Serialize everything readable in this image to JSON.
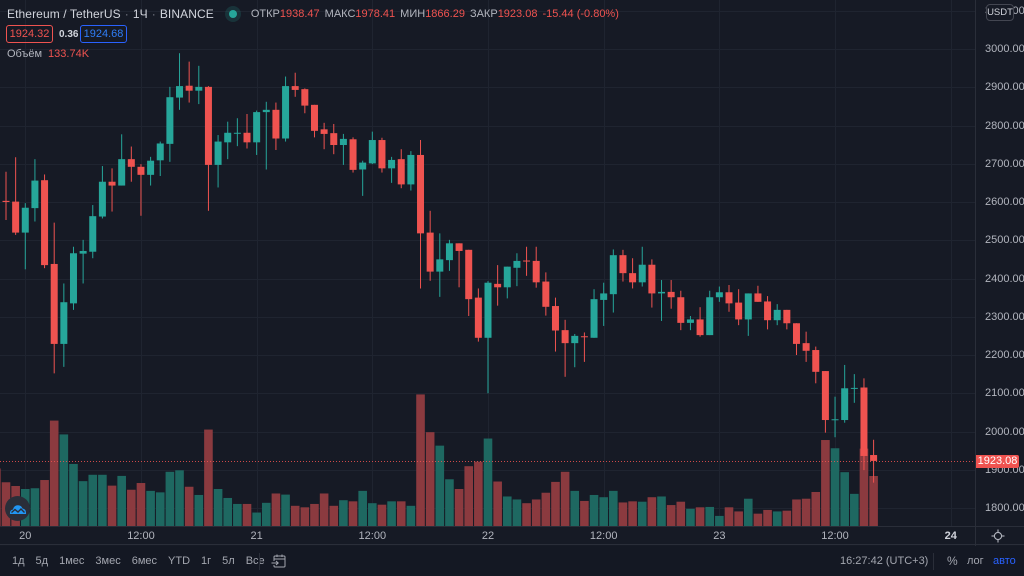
{
  "header": {
    "symbol": "Ethereum / TetherUS",
    "separator": "·",
    "interval": "1Ч",
    "exchange": "BINANCE",
    "ohlc": {
      "open_label": "ОТКР",
      "open": "1938.47",
      "high_label": "МАКС",
      "high": "1978.41",
      "low_label": "МИН",
      "low": "1866.29",
      "close_label": "ЗАКР",
      "close": "1923.08",
      "change": "-15.44 (-0.80%)"
    }
  },
  "quote": {
    "bid": "1924.32",
    "spread": "0.36",
    "ask": "1924.68"
  },
  "volume_legend": {
    "label": "Объём",
    "value": "133.74K"
  },
  "price_axis": {
    "currency": "USDT",
    "last_price": "1923.08"
  },
  "bottom_toolbar": {
    "ranges": [
      "1д",
      "5д",
      "1мес",
      "3мес",
      "6мес",
      "YTD",
      "1г",
      "5л",
      "Все"
    ],
    "clock": "16:27:42 (UTC+3)",
    "percent": "%",
    "log": "лог",
    "auto": "авто"
  },
  "icons": {
    "status": "market-open-dot",
    "date_range": "calendar-goto-icon",
    "settings": "gear-icon",
    "logo": "chart-logo-icon"
  },
  "colors": {
    "up": "#26a69a",
    "down": "#ef5350",
    "volume_up": "#1e6861",
    "volume_down": "#8b3a3f",
    "grid": "#1f2430",
    "price_line": "#ef5350",
    "accent_blue": "#2962ff",
    "background": "#161a25"
  },
  "chart_data": {
    "type": "candlestick",
    "title": "Ethereum / TetherUS · 1Ч · BINANCE",
    "ylabel": "USDT",
    "ylim": [
      1760,
      3110
    ],
    "yticks": [
      3100,
      3000,
      2900,
      2800,
      2700,
      2600,
      2500,
      2400,
      2300,
      2200,
      2100,
      2000,
      1900,
      1800
    ],
    "ytick_labels": [
      "3100.00",
      "3000.00",
      "2900.00",
      "2800.00",
      "2700.00",
      "2600.00",
      "2500.00",
      "2400.00",
      "2300.00",
      "2200.00",
      "2100.00",
      "2000.00",
      "1900.00",
      "1800.00"
    ],
    "xticks": [
      {
        "label": "20",
        "bar": 3
      },
      {
        "label": "12:00",
        "bar": 15
      },
      {
        "label": "21",
        "bar": 27
      },
      {
        "label": "12:00",
        "bar": 39
      },
      {
        "label": "22",
        "bar": 51
      },
      {
        "label": "12:00",
        "bar": 63
      },
      {
        "label": "23",
        "bar": 75
      },
      {
        "label": "12:00",
        "bar": 87
      },
      {
        "label": "24",
        "bar": 99
      }
    ],
    "grid": true,
    "last_price": 1923.08,
    "columns": [
      "open",
      "high",
      "low",
      "close",
      "volume_k"
    ],
    "candles": [
      [
        2767,
        2780,
        2600,
        2603,
        154
      ],
      [
        2603,
        2679,
        2553,
        2600,
        117
      ],
      [
        2601,
        2717,
        2514,
        2520,
        107
      ],
      [
        2520,
        2597,
        2424,
        2585,
        99
      ],
      [
        2584,
        2712,
        2549,
        2656,
        101
      ],
      [
        2657,
        2672,
        2427,
        2435,
        123
      ],
      [
        2438,
        2546,
        2152,
        2229,
        282
      ],
      [
        2229,
        2387,
        2169,
        2338,
        245
      ],
      [
        2335,
        2483,
        2318,
        2466,
        166
      ],
      [
        2465,
        2501,
        2387,
        2472,
        120
      ],
      [
        2470,
        2592,
        2453,
        2563,
        137
      ],
      [
        2562,
        2694,
        2557,
        2653,
        137
      ],
      [
        2653,
        2688,
        2575,
        2643,
        108
      ],
      [
        2643,
        2777,
        2643,
        2712,
        134
      ],
      [
        2712,
        2745,
        2653,
        2692,
        97
      ],
      [
        2692,
        2699,
        2564,
        2671,
        115
      ],
      [
        2671,
        2718,
        2643,
        2708,
        94
      ],
      [
        2709,
        2758,
        2668,
        2753,
        90
      ],
      [
        2752,
        2901,
        2705,
        2874,
        145
      ],
      [
        2873,
        2989,
        2841,
        2903,
        149
      ],
      [
        2904,
        2967,
        2860,
        2891,
        105
      ],
      [
        2891,
        2956,
        2856,
        2901,
        83
      ],
      [
        2901,
        2903,
        2577,
        2697,
        258
      ],
      [
        2697,
        2775,
        2638,
        2758,
        99
      ],
      [
        2756,
        2810,
        2712,
        2781,
        75
      ],
      [
        2779,
        2819,
        2746,
        2781,
        59
      ],
      [
        2781,
        2830,
        2740,
        2756,
        59
      ],
      [
        2756,
        2839,
        2723,
        2835,
        36
      ],
      [
        2835,
        2862,
        2685,
        2841,
        62
      ],
      [
        2841,
        2860,
        2736,
        2766,
        87
      ],
      [
        2766,
        2928,
        2758,
        2903,
        84
      ],
      [
        2903,
        2938,
        2875,
        2893,
        54
      ],
      [
        2895,
        2897,
        2832,
        2852,
        50
      ],
      [
        2854,
        2854,
        2769,
        2786,
        59
      ],
      [
        2790,
        2807,
        2738,
        2778,
        87
      ],
      [
        2780,
        2804,
        2725,
        2749,
        54
      ],
      [
        2749,
        2778,
        2697,
        2765,
        69
      ],
      [
        2764,
        2769,
        2677,
        2684,
        66
      ],
      [
        2685,
        2708,
        2616,
        2703,
        94
      ],
      [
        2701,
        2784,
        2699,
        2762,
        61
      ],
      [
        2762,
        2768,
        2677,
        2688,
        57
      ],
      [
        2688,
        2718,
        2650,
        2710,
        66
      ],
      [
        2712,
        2738,
        2636,
        2646,
        66
      ],
      [
        2646,
        2733,
        2630,
        2723,
        54
      ],
      [
        2723,
        2762,
        2374,
        2518,
        352
      ],
      [
        2520,
        2577,
        2394,
        2418,
        251
      ],
      [
        2418,
        2518,
        2352,
        2450,
        215
      ],
      [
        2448,
        2501,
        2420,
        2492,
        125
      ],
      [
        2492,
        2492,
        2377,
        2472,
        99
      ],
      [
        2475,
        2475,
        2302,
        2346,
        160
      ],
      [
        2350,
        2374,
        2235,
        2245,
        172
      ],
      [
        2245,
        2393,
        2100,
        2389,
        234
      ],
      [
        2386,
        2435,
        2329,
        2377,
        119
      ],
      [
        2377,
        2431,
        2348,
        2431,
        79
      ],
      [
        2428,
        2466,
        2380,
        2446,
        71
      ],
      [
        2447,
        2483,
        2407,
        2445,
        61
      ],
      [
        2446,
        2483,
        2376,
        2390,
        71
      ],
      [
        2392,
        2416,
        2303,
        2326,
        89
      ],
      [
        2328,
        2350,
        2209,
        2264,
        118
      ],
      [
        2265,
        2292,
        2143,
        2231,
        145
      ],
      [
        2231,
        2255,
        2168,
        2250,
        94
      ],
      [
        2249,
        2259,
        2182,
        2247,
        67
      ],
      [
        2245,
        2372,
        2245,
        2346,
        83
      ],
      [
        2344,
        2389,
        2276,
        2361,
        77
      ],
      [
        2359,
        2476,
        2311,
        2461,
        94
      ],
      [
        2461,
        2475,
        2392,
        2414,
        63
      ],
      [
        2414,
        2453,
        2374,
        2390,
        66
      ],
      [
        2390,
        2483,
        2379,
        2436,
        65
      ],
      [
        2436,
        2450,
        2324,
        2361,
        77
      ],
      [
        2361,
        2396,
        2289,
        2365,
        79
      ],
      [
        2365,
        2396,
        2321,
        2351,
        56
      ],
      [
        2351,
        2368,
        2265,
        2284,
        65
      ],
      [
        2284,
        2302,
        2265,
        2293,
        46
      ],
      [
        2293,
        2325,
        2248,
        2252,
        50
      ],
      [
        2252,
        2368,
        2252,
        2351,
        51
      ],
      [
        2351,
        2379,
        2339,
        2364,
        27
      ],
      [
        2364,
        2383,
        2313,
        2335,
        50
      ],
      [
        2337,
        2372,
        2278,
        2293,
        39
      ],
      [
        2293,
        2361,
        2250,
        2361,
        73
      ],
      [
        2361,
        2381,
        2339,
        2339,
        33
      ],
      [
        2340,
        2354,
        2267,
        2291,
        43
      ],
      [
        2291,
        2333,
        2278,
        2318,
        39
      ],
      [
        2318,
        2318,
        2267,
        2283,
        41
      ],
      [
        2283,
        2283,
        2200,
        2229,
        71
      ],
      [
        2231,
        2261,
        2182,
        2211,
        73
      ],
      [
        2213,
        2222,
        2126,
        2156,
        91
      ],
      [
        2158,
        2158,
        1997,
        2030,
        230
      ],
      [
        2030,
        2091,
        1985,
        2032,
        208
      ],
      [
        2030,
        2174,
        2023,
        2113,
        144
      ],
      [
        2112,
        2150,
        2075,
        2114,
        86
      ],
      [
        2115,
        2139,
        1899,
        1936,
        207
      ],
      [
        1938.47,
        1978.41,
        1866.29,
        1923.08,
        133.74
      ]
    ]
  }
}
